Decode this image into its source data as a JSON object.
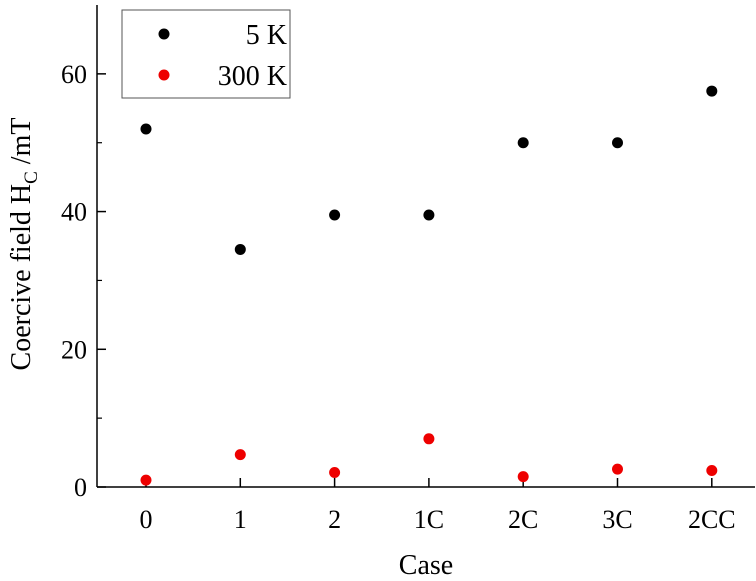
{
  "chart_data": {
    "type": "scatter",
    "title": "",
    "xlabel": "Case",
    "ylabel": {
      "main": "Coercive field H",
      "subscript": "C",
      "unit": " /mT"
    },
    "categories": [
      "0",
      "1",
      "2",
      "1C",
      "2C",
      "3C",
      "2CC"
    ],
    "ylim": [
      0,
      70
    ],
    "yticks": [
      0,
      20,
      40,
      60
    ],
    "grid": false,
    "legend_position": "top-left",
    "series": [
      {
        "name": "5 K",
        "color": "#000000",
        "values": [
          52.0,
          34.5,
          39.5,
          39.5,
          50.0,
          50.0,
          57.5
        ]
      },
      {
        "name": "300 K",
        "color": "#ee0000",
        "values": [
          1.0,
          4.7,
          2.1,
          7.0,
          1.5,
          2.6,
          2.4
        ]
      }
    ]
  }
}
